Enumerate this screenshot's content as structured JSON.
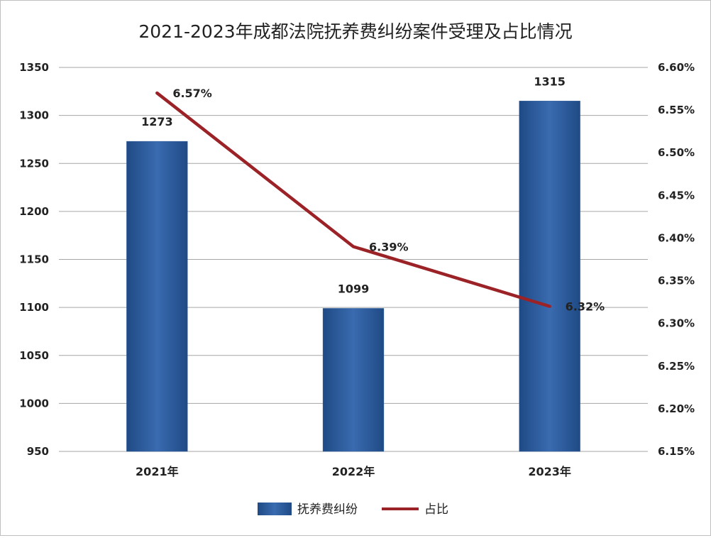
{
  "chart_data": {
    "type": "bar",
    "title": "2021-2023年成都法院抚养费纠纷案件受理及占比情况",
    "categories": [
      "2021年",
      "2022年",
      "2023年"
    ],
    "series": [
      {
        "name": "抚养费纠纷",
        "type": "bar",
        "axis": "left",
        "values": [
          1273,
          1099,
          1315
        ],
        "labels": [
          "1273",
          "1099",
          "1315"
        ],
        "color": "#2e5c9a"
      },
      {
        "name": "占比",
        "type": "line",
        "axis": "right",
        "values": [
          6.57,
          6.39,
          6.32
        ],
        "labels": [
          "6.57%",
          "6.39%",
          "6.32%"
        ],
        "color": "#9b2226"
      }
    ],
    "y_left": {
      "min": 950,
      "max": 1350,
      "ticks": [
        950,
        1000,
        1050,
        1100,
        1150,
        1200,
        1250,
        1300,
        1350
      ],
      "tick_labels": [
        "950",
        "1000",
        "1050",
        "1100",
        "1150",
        "1200",
        "1250",
        "1300",
        "1350"
      ]
    },
    "y_right": {
      "min": 6.15,
      "max": 6.6,
      "ticks": [
        6.15,
        6.2,
        6.25,
        6.3,
        6.35,
        6.4,
        6.45,
        6.5,
        6.55,
        6.6
      ],
      "tick_labels": [
        "6.15%",
        "6.20%",
        "6.25%",
        "6.30%",
        "6.35%",
        "6.40%",
        "6.45%",
        "6.50%",
        "6.55%",
        "6.60%"
      ]
    },
    "grid": true,
    "legend_position": "bottom"
  }
}
